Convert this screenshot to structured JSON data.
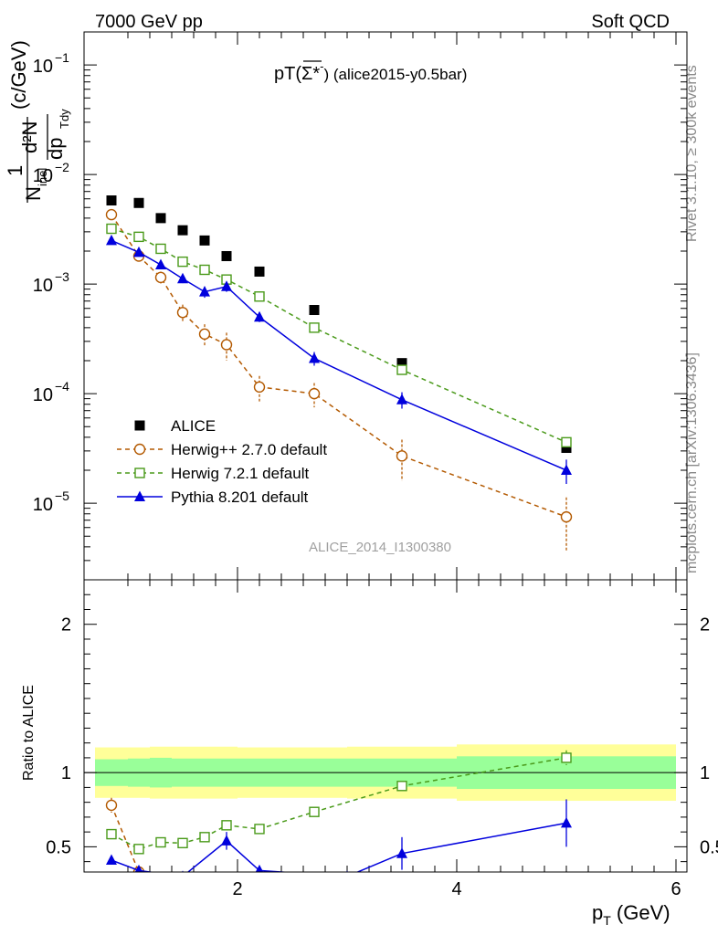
{
  "header": {
    "left": "7000 GeV pp",
    "right": "Soft QCD"
  },
  "side_text": {
    "rivet": "Rivet 3.1.10, ≥ 300k events",
    "mcplots": "mcplots.cern.ch [arXiv:1306.3436]"
  },
  "watermark": "ALICE_2014_I1300380",
  "chart_data": [
    {
      "type": "scatter",
      "title": "pT(Σ*⁻) (alice2015-y0.5bar)",
      "title_main": "pT(",
      "title_particle": "Σ*",
      "title_sup": "-",
      "title_tail": ") (alice2015-y0.5bar)",
      "ylabel": "1/N_inel d²N/dp_T dy (c/GeV)",
      "ylabel_parts": {
        "one": "1",
        "N": "N",
        "Nsub": "inel",
        "num": "d²N",
        "den": "dp",
        "densub": "Tdy",
        "units": "(c/GeV)"
      },
      "xlabel": "",
      "xlim": [
        0.6,
        6.1
      ],
      "ylim": [
        2e-06,
        0.2
      ],
      "yscale": "log",
      "ytick_labels": [
        {
          "value": 0.1,
          "base": "10",
          "exp": "−1"
        },
        {
          "value": 0.01,
          "base": "10",
          "exp": "−2"
        },
        {
          "value": 0.001,
          "base": "10",
          "exp": "−3"
        },
        {
          "value": 0.0001,
          "base": "10",
          "exp": "−4"
        },
        {
          "value": 1e-05,
          "base": "10",
          "exp": "−5"
        }
      ],
      "legend_position": "lower-left",
      "series": [
        {
          "name": "ALICE",
          "color": "#000000",
          "marker": "filled-square",
          "line": "none",
          "x": [
            0.85,
            1.1,
            1.3,
            1.5,
            1.7,
            1.9,
            2.2,
            2.7,
            3.5,
            5.0
          ],
          "y": [
            0.0058,
            0.0055,
            0.004,
            0.0031,
            0.0025,
            0.0018,
            0.0013,
            0.00058,
            0.00019,
            3.2e-05
          ],
          "err": [
            0,
            0,
            0,
            0,
            0,
            0,
            0,
            0,
            0,
            0
          ]
        },
        {
          "name": "Herwig++ 2.7.0 default",
          "color": "#b35900",
          "marker": "open-circle",
          "line": "dashed",
          "x": [
            0.85,
            1.1,
            1.3,
            1.5,
            1.7,
            1.9,
            2.2,
            2.7,
            3.5,
            5.0
          ],
          "y": [
            0.0043,
            0.0018,
            0.00115,
            0.00055,
            0.00035,
            0.00028,
            0.000115,
            0.0001,
            2.7e-05,
            7.5e-06
          ],
          "err": [
            0.0003,
            0.00015,
            0.00015,
            0.0001,
            8e-05,
            8e-05,
            3e-05,
            2.5e-05,
            1.1e-05,
            3.8e-06
          ]
        },
        {
          "name": "Herwig 7.2.1 default",
          "color": "#4a9a1a",
          "marker": "open-square",
          "line": "dashed",
          "x": [
            0.85,
            1.1,
            1.3,
            1.5,
            1.7,
            1.9,
            2.2,
            2.7,
            3.5,
            5.0
          ],
          "y": [
            0.0032,
            0.0027,
            0.0021,
            0.0016,
            0.00135,
            0.0011,
            0.00077,
            0.0004,
            0.000165,
            3.6e-05
          ],
          "err": [
            0.0001,
            0.0001,
            8e-05,
            6e-05,
            5e-05,
            4e-05,
            3e-05,
            2e-05,
            1e-05,
            3e-06
          ]
        },
        {
          "name": "Pythia 8.201 default",
          "color": "#0000dd",
          "marker": "filled-triangle",
          "line": "solid",
          "x": [
            0.85,
            1.1,
            1.3,
            1.5,
            1.7,
            1.9,
            2.2,
            2.7,
            3.5,
            5.0
          ],
          "y": [
            0.0025,
            0.00195,
            0.0015,
            0.00112,
            0.00085,
            0.00095,
            0.0005,
            0.00021,
            8.8e-05,
            2e-05
          ],
          "err": [
            0.0001,
            0.00012,
            0.0001,
            0.0001,
            0.0001,
            0.0001,
            5e-05,
            3e-05,
            1.5e-05,
            5e-06
          ]
        }
      ]
    },
    {
      "type": "scatter",
      "title": "",
      "ylabel": "Ratio to ALICE",
      "xlabel": "p_T (GeV)",
      "xlabel_parts": {
        "p": "p",
        "sub": "T",
        "unit": " (GeV)"
      },
      "xlim": [
        0.6,
        6.1
      ],
      "ylim": [
        0.33,
        2.3
      ],
      "xticks": [
        2,
        4,
        6
      ],
      "xtick_labels": [
        "2",
        "4",
        "6"
      ],
      "yticks": [
        0.5,
        1,
        2
      ],
      "ytick_labels": [
        "0.5",
        "1",
        "2"
      ],
      "reference_line": 1.0,
      "bands": {
        "edges": [
          0.7,
          1.0,
          1.2,
          1.4,
          1.6,
          1.8,
          2.0,
          2.4,
          3.0,
          4.0,
          6.0
        ],
        "inner_color": "#99ff99",
        "outer_color": "#ffff99",
        "inner_half": [
          0.09,
          0.095,
          0.1,
          0.095,
          0.095,
          0.095,
          0.095,
          0.095,
          0.095,
          0.11
        ],
        "outer_half": [
          0.17,
          0.17,
          0.175,
          0.175,
          0.175,
          0.175,
          0.17,
          0.17,
          0.175,
          0.19
        ]
      },
      "series": [
        {
          "name": "Herwig++ 2.7.0 default",
          "color": "#b35900",
          "marker": "open-circle",
          "line": "dashed",
          "x": [
            0.85,
            1.1,
            1.3
          ],
          "y": [
            0.78,
            0.33,
            0.29
          ],
          "err": [
            0.05,
            0,
            0
          ]
        },
        {
          "name": "Herwig 7.2.1 default",
          "color": "#4a9a1a",
          "marker": "open-square",
          "line": "dashed",
          "x": [
            0.85,
            1.1,
            1.3,
            1.5,
            1.7,
            1.9,
            2.2,
            2.7,
            3.5,
            5.0
          ],
          "y": [
            0.585,
            0.485,
            0.53,
            0.525,
            0.565,
            0.645,
            0.62,
            0.735,
            0.91,
            1.1
          ],
          "err": [
            0.015,
            0.015,
            0.015,
            0.015,
            0.015,
            0.02,
            0.015,
            0.02,
            0.03,
            0.05
          ]
        },
        {
          "name": "Pythia 8.201 default",
          "color": "#0000dd",
          "marker": "filled-triangle",
          "line": "solid",
          "x": [
            0.85,
            1.1,
            1.5,
            1.9,
            2.2,
            3.0,
            3.5,
            5.0
          ],
          "y": [
            0.41,
            0.34,
            0.3,
            0.54,
            0.34,
            0.3,
            0.455,
            0.66
          ],
          "err": [
            0.025,
            0,
            0,
            0.06,
            0,
            0,
            0.11,
            0.16
          ]
        }
      ]
    }
  ]
}
